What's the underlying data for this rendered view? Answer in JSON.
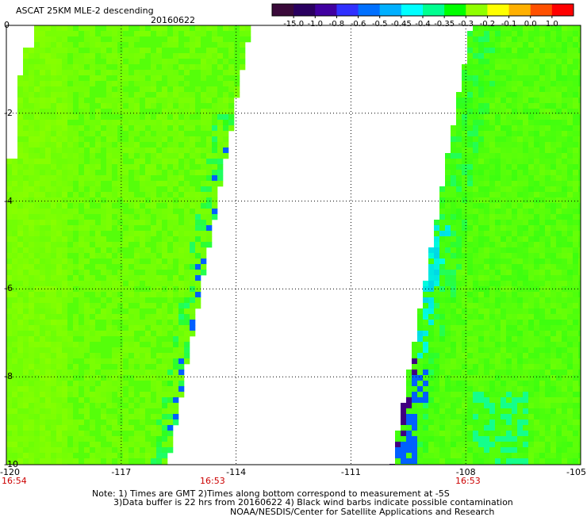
{
  "header": {
    "title": "ASCAT 25KM MLE-2 descending",
    "date": "20160622"
  },
  "colorbar": {
    "ticks": [
      "-15.0",
      "-1.0",
      "-0.8",
      "-0.6",
      "-0.5",
      "-0.45",
      "-0.4",
      "-0.35",
      "-0.3",
      "-0.2",
      "-0.1",
      "0.0",
      "1.0"
    ],
    "colors": [
      "#3a0a3a",
      "#2a0060",
      "#4000a0",
      "#3030ff",
      "#0070ff",
      "#00b0ff",
      "#00ffff",
      "#00ff90",
      "#00ff00",
      "#90ff00",
      "#ffff00",
      "#ffb000",
      "#ff5000",
      "#ff0000"
    ]
  },
  "map": {
    "x_ticks": [
      "-120",
      "-117",
      "-114",
      "-111",
      "-108",
      "-105"
    ],
    "y_ticks": [
      "0",
      "-2",
      "-4",
      "-6",
      "-8",
      "-10"
    ],
    "times": [
      "16:54",
      "16:53",
      "16:53"
    ],
    "colors": {
      "dominant": "#88ff00",
      "green": "#33ff11",
      "cyan": "#00ffdd",
      "blue": "#0060ff",
      "purple": "#400080"
    }
  },
  "footer": {
    "line1": "Note: 1) Times are GMT 2)Times along bottom correspond to measurement at -5S",
    "line2": "3)Data buffer is 22 hrs from 20160622 4) Black wind barbs indicate possible contamination",
    "line3": "NOAA/NESDIS/Center for Satellite Applications and Research"
  }
}
